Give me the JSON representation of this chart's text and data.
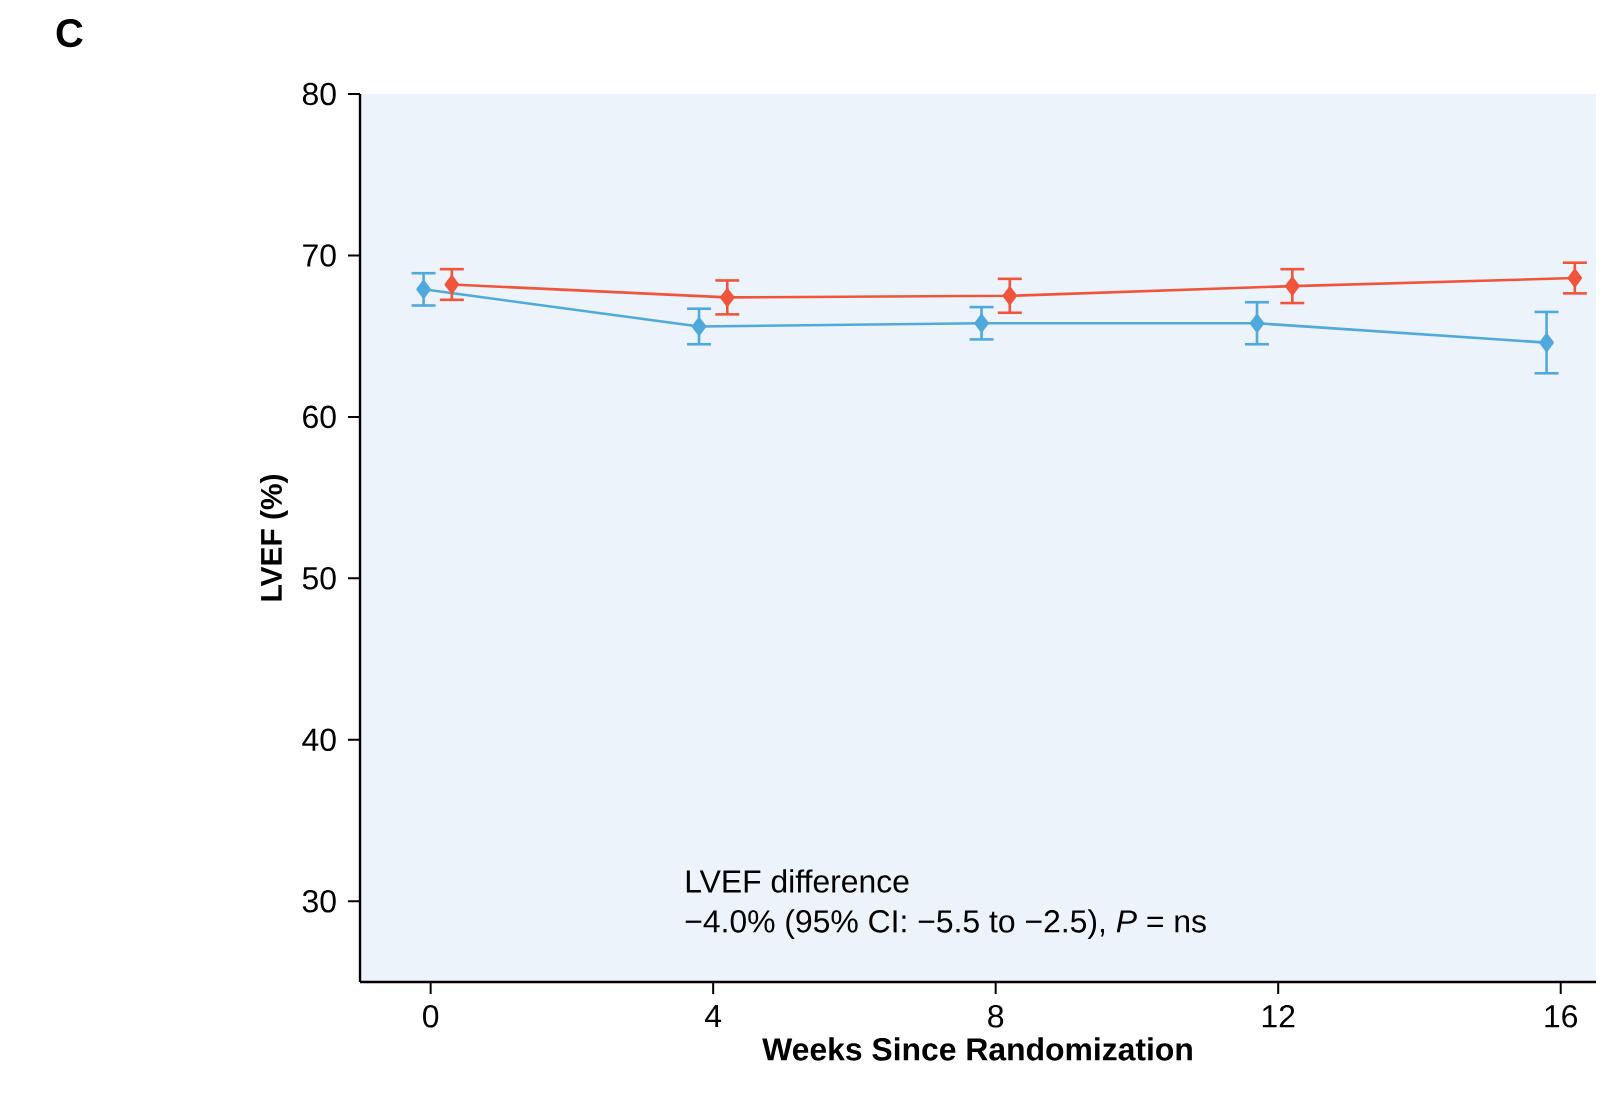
{
  "chart_data": {
    "type": "line",
    "title": "C",
    "xlabel": "Weeks Since Randomization",
    "ylabel": "LVEF (%)",
    "xlim": [
      -1,
      16.5
    ],
    "xticks": [
      0,
      4,
      8,
      12,
      16
    ],
    "ylim": [
      25,
      80
    ],
    "yticks": [
      30,
      40,
      50,
      60,
      70,
      80
    ],
    "marker": "diamond",
    "annotations": [
      "LVEF difference",
      "−4.0% (95% CI: −5.5 to −2.5), *P* = ns"
    ],
    "series": [
      {
        "color": "#4fa9dc",
        "x": [
          -0.1,
          3.8,
          7.8,
          11.7,
          15.8
        ],
        "values": [
          67.9,
          65.6,
          65.8,
          65.8,
          64.6
        ],
        "errors": [
          1.0,
          1.1,
          1.0,
          1.3,
          1.9
        ]
      },
      {
        "color": "#f0553c",
        "x": [
          0.3,
          4.2,
          8.2,
          12.2,
          16.2
        ],
        "values": [
          68.2,
          67.4,
          67.5,
          68.1,
          68.6
        ],
        "errors": [
          0.95,
          1.05,
          1.05,
          1.05,
          0.95
        ]
      }
    ]
  }
}
